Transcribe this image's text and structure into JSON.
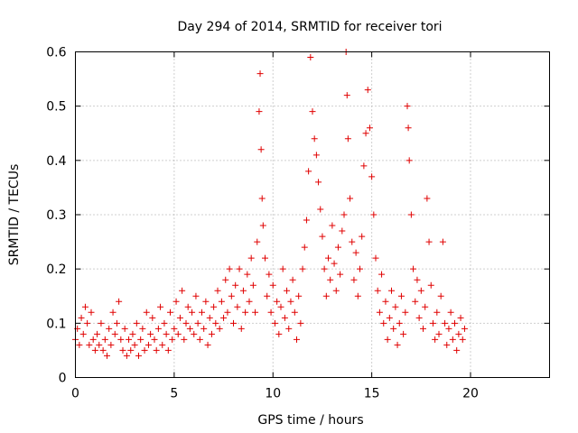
{
  "chart_data": {
    "type": "scatter",
    "title": "Day 294 of 2014, SRMTID for receiver tori",
    "xlabel": "GPS time / hours",
    "ylabel": "SRMTID / TECUs",
    "xlim": [
      0,
      24
    ],
    "ylim": [
      0,
      0.6
    ],
    "x_ticks": [
      0,
      5,
      10,
      15,
      20
    ],
    "x_tick_labels": [
      "0",
      "5",
      "10",
      "15",
      "20"
    ],
    "y_ticks": [
      0,
      0.1,
      0.2,
      0.3,
      0.4,
      0.5,
      0.6
    ],
    "y_tick_labels": [
      "0",
      "0.1",
      "0.2",
      "0.3",
      "0.4",
      "0.5",
      "0.6"
    ],
    "grid": true,
    "marker": "+",
    "color": "#e00000",
    "series": [
      {
        "name": "SRMTID",
        "points": [
          [
            0.0,
            0.07
          ],
          [
            0.1,
            0.09
          ],
          [
            0.2,
            0.06
          ],
          [
            0.3,
            0.11
          ],
          [
            0.4,
            0.08
          ],
          [
            0.5,
            0.13
          ],
          [
            0.6,
            0.1
          ],
          [
            0.7,
            0.06
          ],
          [
            0.8,
            0.12
          ],
          [
            0.9,
            0.07
          ],
          [
            1.0,
            0.05
          ],
          [
            1.1,
            0.08
          ],
          [
            1.2,
            0.06
          ],
          [
            1.3,
            0.1
          ],
          [
            1.4,
            0.05
          ],
          [
            1.5,
            0.07
          ],
          [
            1.6,
            0.04
          ],
          [
            1.7,
            0.09
          ],
          [
            1.8,
            0.06
          ],
          [
            1.9,
            0.12
          ],
          [
            2.0,
            0.08
          ],
          [
            2.1,
            0.1
          ],
          [
            2.2,
            0.14
          ],
          [
            2.3,
            0.07
          ],
          [
            2.4,
            0.05
          ],
          [
            2.5,
            0.09
          ],
          [
            2.6,
            0.04
          ],
          [
            2.7,
            0.07
          ],
          [
            2.8,
            0.05
          ],
          [
            2.9,
            0.08
          ],
          [
            3.0,
            0.06
          ],
          [
            3.1,
            0.1
          ],
          [
            3.2,
            0.04
          ],
          [
            3.3,
            0.07
          ],
          [
            3.4,
            0.09
          ],
          [
            3.5,
            0.05
          ],
          [
            3.6,
            0.12
          ],
          [
            3.7,
            0.06
          ],
          [
            3.8,
            0.08
          ],
          [
            3.9,
            0.11
          ],
          [
            4.0,
            0.07
          ],
          [
            4.1,
            0.05
          ],
          [
            4.2,
            0.09
          ],
          [
            4.3,
            0.13
          ],
          [
            4.4,
            0.06
          ],
          [
            4.5,
            0.1
          ],
          [
            4.6,
            0.08
          ],
          [
            4.7,
            0.05
          ],
          [
            4.8,
            0.12
          ],
          [
            4.9,
            0.07
          ],
          [
            5.0,
            0.09
          ],
          [
            5.1,
            0.14
          ],
          [
            5.2,
            0.08
          ],
          [
            5.3,
            0.11
          ],
          [
            5.4,
            0.16
          ],
          [
            5.5,
            0.07
          ],
          [
            5.6,
            0.1
          ],
          [
            5.7,
            0.13
          ],
          [
            5.8,
            0.09
          ],
          [
            5.9,
            0.12
          ],
          [
            6.0,
            0.08
          ],
          [
            6.1,
            0.15
          ],
          [
            6.2,
            0.1
          ],
          [
            6.3,
            0.07
          ],
          [
            6.4,
            0.12
          ],
          [
            6.5,
            0.09
          ],
          [
            6.6,
            0.14
          ],
          [
            6.7,
            0.06
          ],
          [
            6.8,
            0.11
          ],
          [
            6.9,
            0.08
          ],
          [
            7.0,
            0.13
          ],
          [
            7.1,
            0.1
          ],
          [
            7.2,
            0.16
          ],
          [
            7.3,
            0.09
          ],
          [
            7.4,
            0.14
          ],
          [
            7.5,
            0.11
          ],
          [
            7.6,
            0.18
          ],
          [
            7.7,
            0.12
          ],
          [
            7.8,
            0.2
          ],
          [
            7.9,
            0.15
          ],
          [
            8.0,
            0.1
          ],
          [
            8.1,
            0.17
          ],
          [
            8.2,
            0.13
          ],
          [
            8.3,
            0.2
          ],
          [
            8.4,
            0.09
          ],
          [
            8.5,
            0.16
          ],
          [
            8.6,
            0.12
          ],
          [
            8.7,
            0.19
          ],
          [
            8.8,
            0.14
          ],
          [
            8.9,
            0.22
          ],
          [
            9.0,
            0.17
          ],
          [
            9.1,
            0.12
          ],
          [
            9.2,
            0.25
          ],
          [
            9.3,
            0.49
          ],
          [
            9.35,
            0.56
          ],
          [
            9.4,
            0.42
          ],
          [
            9.45,
            0.33
          ],
          [
            9.5,
            0.28
          ],
          [
            9.6,
            0.22
          ],
          [
            9.7,
            0.15
          ],
          [
            9.8,
            0.19
          ],
          [
            9.9,
            0.12
          ],
          [
            10.0,
            0.17
          ],
          [
            10.1,
            0.1
          ],
          [
            10.2,
            0.14
          ],
          [
            10.3,
            0.08
          ],
          [
            10.4,
            0.13
          ],
          [
            10.5,
            0.2
          ],
          [
            10.6,
            0.11
          ],
          [
            10.7,
            0.16
          ],
          [
            10.8,
            0.09
          ],
          [
            10.9,
            0.14
          ],
          [
            11.0,
            0.18
          ],
          [
            11.1,
            0.12
          ],
          [
            11.2,
            0.07
          ],
          [
            11.3,
            0.15
          ],
          [
            11.4,
            0.1
          ],
          [
            11.5,
            0.2
          ],
          [
            11.6,
            0.24
          ],
          [
            11.7,
            0.29
          ],
          [
            11.8,
            0.38
          ],
          [
            11.9,
            0.59
          ],
          [
            12.0,
            0.49
          ],
          [
            12.1,
            0.44
          ],
          [
            12.2,
            0.41
          ],
          [
            12.3,
            0.36
          ],
          [
            12.4,
            0.31
          ],
          [
            12.5,
            0.26
          ],
          [
            12.6,
            0.2
          ],
          [
            12.7,
            0.15
          ],
          [
            12.8,
            0.22
          ],
          [
            12.9,
            0.18
          ],
          [
            13.0,
            0.28
          ],
          [
            13.1,
            0.21
          ],
          [
            13.2,
            0.16
          ],
          [
            13.3,
            0.24
          ],
          [
            13.4,
            0.19
          ],
          [
            13.5,
            0.27
          ],
          [
            13.6,
            0.3
          ],
          [
            13.7,
            0.6
          ],
          [
            13.75,
            0.52
          ],
          [
            13.8,
            0.44
          ],
          [
            13.9,
            0.33
          ],
          [
            14.0,
            0.25
          ],
          [
            14.1,
            0.18
          ],
          [
            14.2,
            0.23
          ],
          [
            14.3,
            0.15
          ],
          [
            14.4,
            0.2
          ],
          [
            14.5,
            0.26
          ],
          [
            14.6,
            0.39
          ],
          [
            14.7,
            0.45
          ],
          [
            14.8,
            0.53
          ],
          [
            14.9,
            0.46
          ],
          [
            15.0,
            0.37
          ],
          [
            15.1,
            0.3
          ],
          [
            15.2,
            0.22
          ],
          [
            15.3,
            0.16
          ],
          [
            15.4,
            0.12
          ],
          [
            15.5,
            0.19
          ],
          [
            15.6,
            0.1
          ],
          [
            15.7,
            0.14
          ],
          [
            15.8,
            0.07
          ],
          [
            15.9,
            0.11
          ],
          [
            16.0,
            0.16
          ],
          [
            16.1,
            0.09
          ],
          [
            16.2,
            0.13
          ],
          [
            16.3,
            0.06
          ],
          [
            16.4,
            0.1
          ],
          [
            16.5,
            0.15
          ],
          [
            16.6,
            0.08
          ],
          [
            16.7,
            0.12
          ],
          [
            16.8,
            0.5
          ],
          [
            16.85,
            0.46
          ],
          [
            16.9,
            0.4
          ],
          [
            17.0,
            0.3
          ],
          [
            17.1,
            0.2
          ],
          [
            17.2,
            0.14
          ],
          [
            17.3,
            0.18
          ],
          [
            17.4,
            0.11
          ],
          [
            17.5,
            0.16
          ],
          [
            17.6,
            0.09
          ],
          [
            17.7,
            0.13
          ],
          [
            17.8,
            0.33
          ],
          [
            17.9,
            0.25
          ],
          [
            18.0,
            0.17
          ],
          [
            18.1,
            0.1
          ],
          [
            18.2,
            0.07
          ],
          [
            18.3,
            0.12
          ],
          [
            18.4,
            0.08
          ],
          [
            18.5,
            0.15
          ],
          [
            18.6,
            0.25
          ],
          [
            18.7,
            0.1
          ],
          [
            18.8,
            0.06
          ],
          [
            18.9,
            0.09
          ],
          [
            19.0,
            0.12
          ],
          [
            19.1,
            0.07
          ],
          [
            19.2,
            0.1
          ],
          [
            19.3,
            0.05
          ],
          [
            19.4,
            0.08
          ],
          [
            19.5,
            0.11
          ],
          [
            19.6,
            0.07
          ],
          [
            19.7,
            0.09
          ]
        ]
      }
    ]
  }
}
